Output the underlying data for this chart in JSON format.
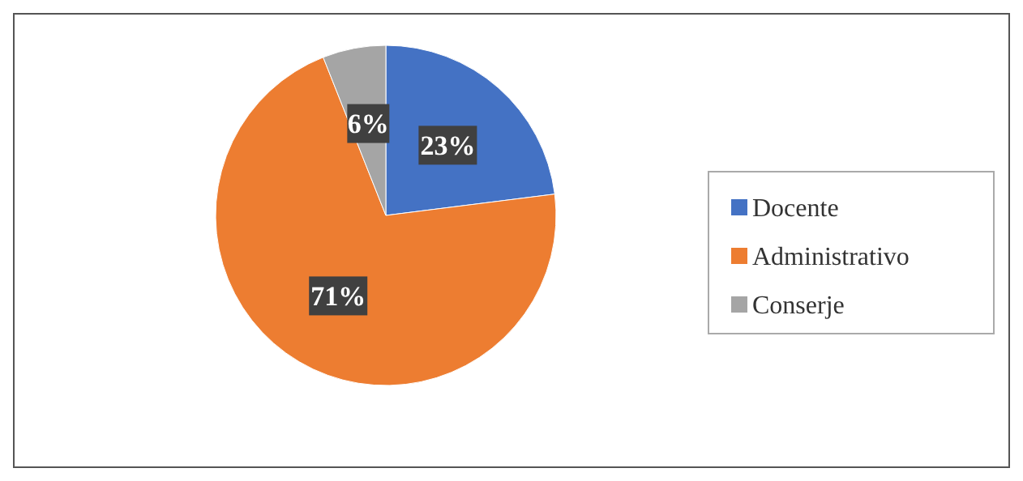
{
  "chart_data": {
    "type": "pie",
    "categories": [
      "Docente",
      "Administrativo",
      "Conserje"
    ],
    "values": [
      23,
      71,
      6
    ],
    "colors": [
      "#4472c4",
      "#ed7d31",
      "#a5a5a5"
    ],
    "value_labels": [
      "23%",
      "71%",
      "6%"
    ],
    "legend": "right"
  }
}
